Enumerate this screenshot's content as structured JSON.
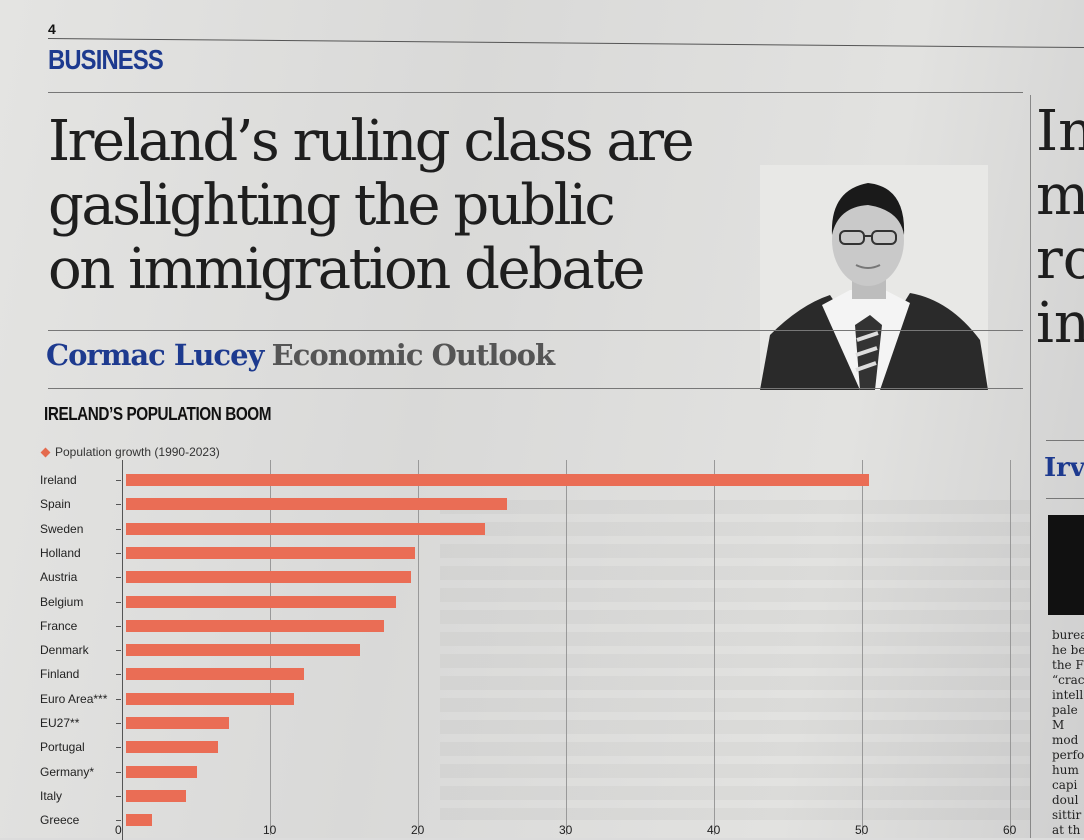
{
  "page": {
    "number": "4",
    "section": "BUSINESS"
  },
  "article": {
    "headline_lines": [
      "Ireland’s ruling class are",
      "gaslighting the public",
      "on immigration debate"
    ],
    "author": "Cormac Lucey",
    "column": "Economic Outlook"
  },
  "chart_data": {
    "type": "bar",
    "orientation": "horizontal",
    "title": "IRELAND’S POPULATION BOOM",
    "legend": [
      "Population growth (1990-2023)"
    ],
    "categories": [
      "Ireland",
      "Spain",
      "Sweden",
      "Holland",
      "Austria",
      "Belgium",
      "France",
      "Denmark",
      "Finland",
      "Euro Area***",
      "EU27**",
      "Portugal",
      "Germany*",
      "Italy",
      "Greece"
    ],
    "values": [
      50.5,
      26.0,
      24.5,
      19.8,
      19.5,
      18.5,
      17.7,
      16.1,
      12.3,
      11.6,
      7.2,
      6.5,
      5.1,
      4.3,
      2.0
    ],
    "xlim": [
      0,
      60
    ],
    "xticks": [
      "0",
      "10",
      "20",
      "30",
      "40",
      "50",
      "60"
    ],
    "bar_color": "#ea6d55"
  },
  "right_column": {
    "headline_fragments": [
      "In",
      "m",
      "ro",
      "in"
    ],
    "subhead": "Irv",
    "text_fragments": [
      "burea",
      "he be",
      "the F",
      "“crac",
      "intell",
      "pale",
      "M",
      "mod",
      "perfo",
      "hum",
      "capi",
      "doul",
      "sittir",
      "at th"
    ]
  }
}
